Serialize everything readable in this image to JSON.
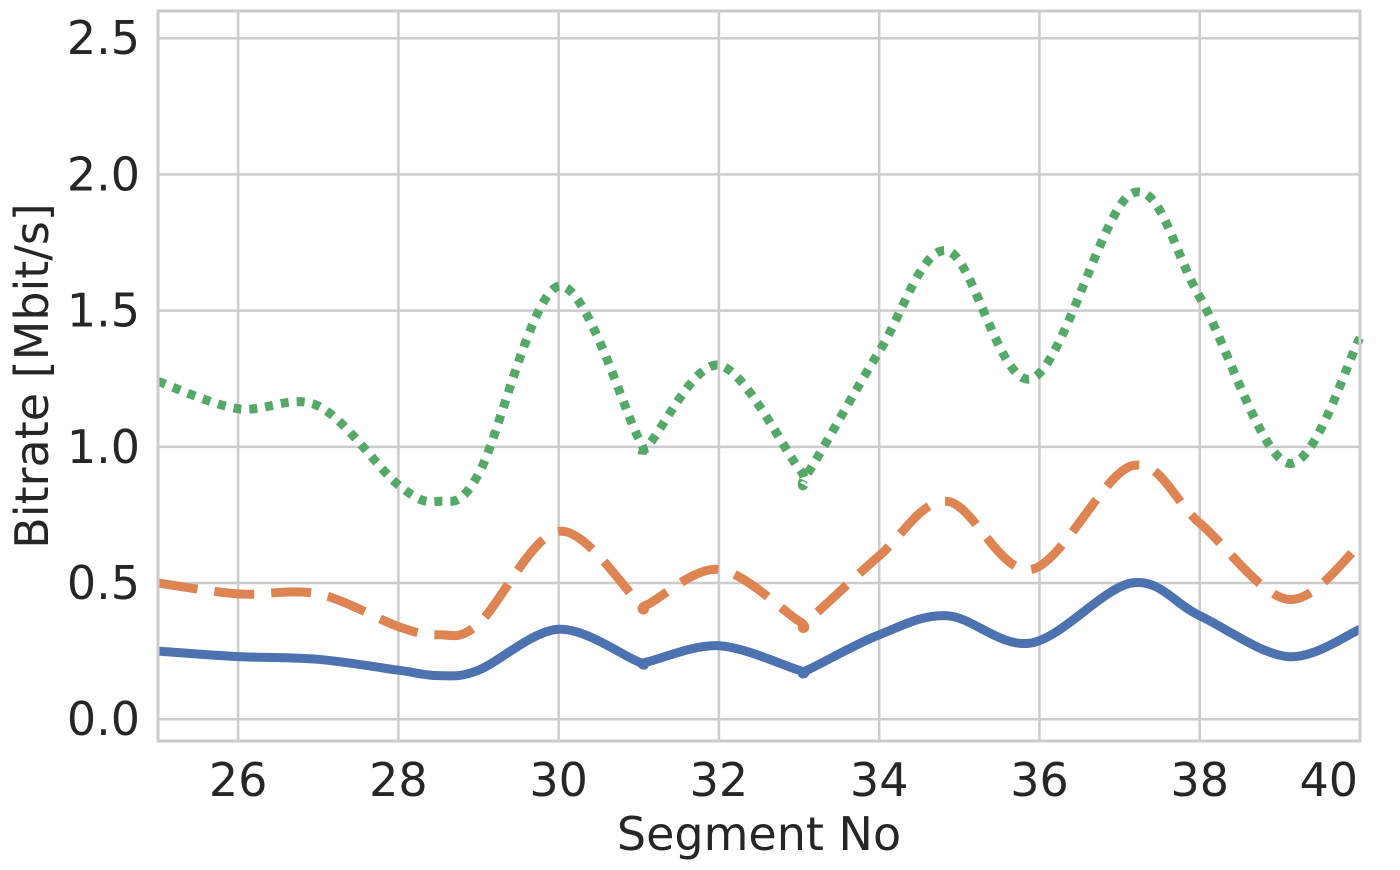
{
  "chart_data": {
    "type": "line",
    "xlabel": "Segment No",
    "ylabel": "Bitrate [Mbit/s]",
    "xlim": [
      25,
      40
    ],
    "ylim": [
      -0.08,
      2.6
    ],
    "xticks": [
      26,
      28,
      30,
      32,
      34,
      36,
      38,
      40
    ],
    "xtick_labels": [
      "26",
      "28",
      "30",
      "32",
      "34",
      "36",
      "38",
      "40"
    ],
    "yticks": [
      0.0,
      0.5,
      1.0,
      1.5,
      2.0,
      2.5
    ],
    "ytick_labels": [
      "0.0",
      "0.5",
      "1.0",
      "1.5",
      "2.0",
      "2.5"
    ],
    "grid": true,
    "x": [
      25,
      26,
      27,
      28,
      28.5,
      29,
      30,
      31,
      31.1,
      32,
      33,
      33.1,
      34,
      34.85,
      35.9,
      37.15,
      38,
      39.1,
      40
    ],
    "series": [
      {
        "color": "#4c72b0",
        "style": "solid",
        "values": [
          0.25,
          0.23,
          0.22,
          0.18,
          0.16,
          0.18,
          0.33,
          0.21,
          0.21,
          0.27,
          0.18,
          0.18,
          0.31,
          0.38,
          0.28,
          0.5,
          0.38,
          0.23,
          0.33
        ]
      },
      {
        "color": "#dd8452",
        "style": "dashed",
        "values": [
          0.5,
          0.46,
          0.46,
          0.34,
          0.31,
          0.35,
          0.69,
          0.43,
          0.42,
          0.55,
          0.36,
          0.36,
          0.6,
          0.8,
          0.55,
          0.93,
          0.72,
          0.44,
          0.64
        ]
      },
      {
        "color": "#55a868",
        "style": "dotted",
        "values": [
          1.24,
          1.14,
          1.15,
          0.86,
          0.8,
          0.9,
          1.59,
          1.03,
          1.0,
          1.3,
          0.92,
          0.9,
          1.35,
          1.72,
          1.25,
          1.93,
          1.55,
          0.94,
          1.4
        ]
      }
    ]
  }
}
